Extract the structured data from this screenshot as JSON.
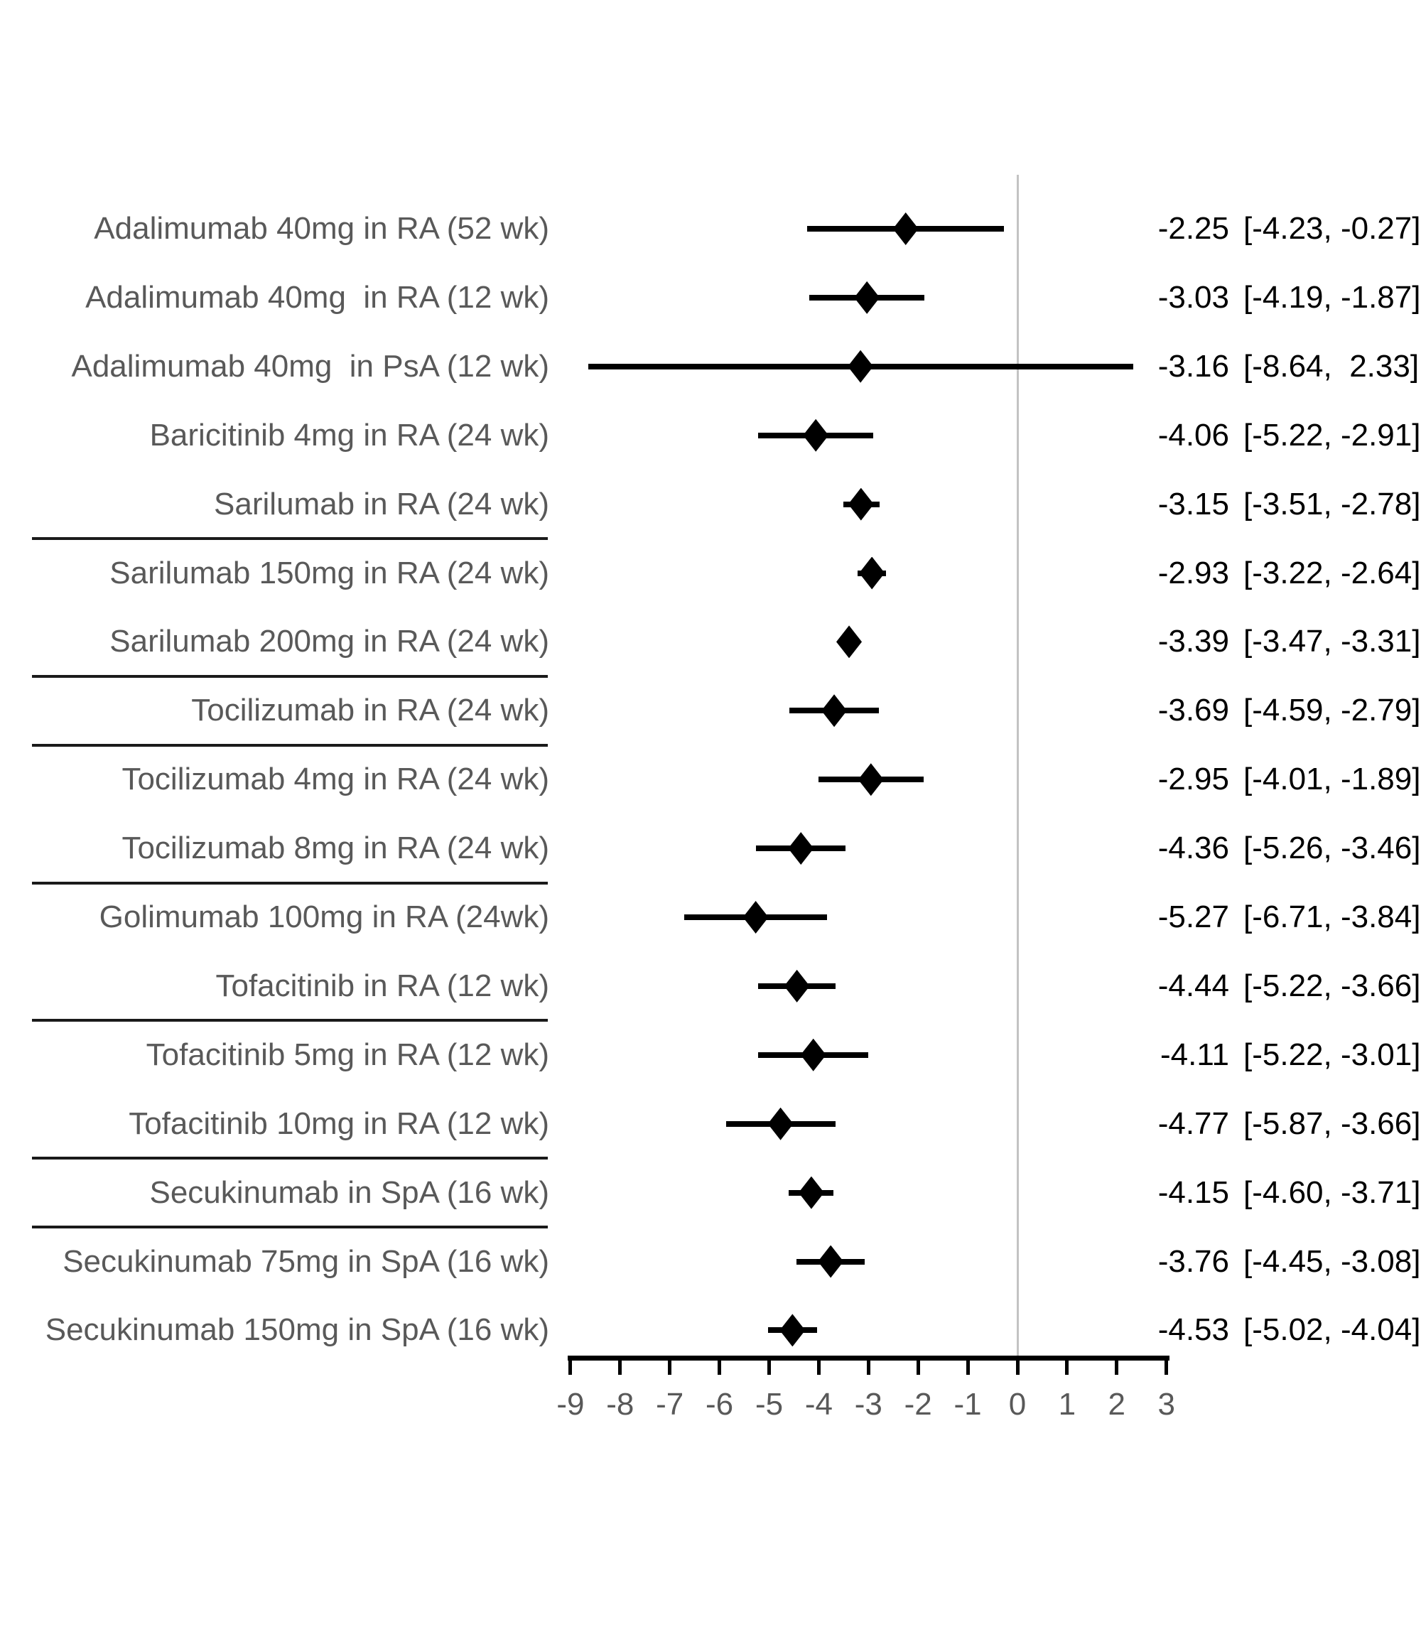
{
  "chart_data": {
    "type": "forest",
    "title": "",
    "xlabel": "",
    "ylabel": "",
    "xlim": [
      -9,
      3
    ],
    "grid": false,
    "zero_reference_line": 0,
    "x_axis": {
      "tick_values": [
        -9,
        -8,
        -7,
        -6,
        -5,
        -4,
        -3,
        -2,
        -1,
        0,
        1,
        2,
        3
      ],
      "tick_labels": [
        "-9",
        "-8",
        "-7",
        "-6",
        "-5",
        "-4",
        "-3",
        "-2",
        "-1",
        "0",
        "1",
        "2",
        "3"
      ]
    },
    "rows": [
      {
        "label": "Adalimumab 40mg in RA (52 wk)",
        "mean": -2.25,
        "lo": -4.23,
        "hi": -0.27,
        "value_text": "-2.25",
        "ci_text": "[-4.23, -0.27]"
      },
      {
        "label": "Adalimumab 40mg  in RA (12 wk)",
        "mean": -3.03,
        "lo": -4.19,
        "hi": -1.87,
        "value_text": "-3.03",
        "ci_text": "[-4.19, -1.87]"
      },
      {
        "label": "Adalimumab 40mg  in PsA (12 wk)",
        "mean": -3.16,
        "lo": -8.64,
        "hi": 2.33,
        "value_text": "-3.16",
        "ci_text": "[-8.64,  2.33]"
      },
      {
        "label": "Baricitinib 4mg in RA (24 wk)",
        "mean": -4.06,
        "lo": -5.22,
        "hi": -2.91,
        "value_text": "-4.06",
        "ci_text": "[-5.22, -2.91]"
      },
      {
        "label": "Sarilumab in RA (24 wk)",
        "mean": -3.15,
        "lo": -3.51,
        "hi": -2.78,
        "value_text": "-3.15",
        "ci_text": "[-3.51, -2.78]"
      },
      {
        "label": "Sarilumab 150mg in RA (24 wk)",
        "mean": -2.93,
        "lo": -3.22,
        "hi": -2.64,
        "value_text": "-2.93",
        "ci_text": "[-3.22, -2.64]"
      },
      {
        "label": "Sarilumab 200mg in RA (24 wk)",
        "mean": -3.39,
        "lo": -3.47,
        "hi": -3.31,
        "value_text": "-3.39",
        "ci_text": "[-3.47, -3.31]"
      },
      {
        "label": "Tocilizumab in RA (24 wk)",
        "mean": -3.69,
        "lo": -4.59,
        "hi": -2.79,
        "value_text": "-3.69",
        "ci_text": "[-4.59, -2.79]"
      },
      {
        "label": "Tocilizumab 4mg in RA (24 wk)",
        "mean": -2.95,
        "lo": -4.01,
        "hi": -1.89,
        "value_text": "-2.95",
        "ci_text": "[-4.01, -1.89]"
      },
      {
        "label": "Tocilizumab 8mg in RA (24 wk)",
        "mean": -4.36,
        "lo": -5.26,
        "hi": -3.46,
        "value_text": "-4.36",
        "ci_text": "[-5.26, -3.46]"
      },
      {
        "label": "Golimumab 100mg in RA (24wk)",
        "mean": -5.27,
        "lo": -6.71,
        "hi": -3.84,
        "value_text": "-5.27",
        "ci_text": "[-6.71, -3.84]"
      },
      {
        "label": "Tofacitinib in RA (12 wk)",
        "mean": -4.44,
        "lo": -5.22,
        "hi": -3.66,
        "value_text": "-4.44",
        "ci_text": "[-5.22, -3.66]"
      },
      {
        "label": "Tofacitinib 5mg in RA (12 wk)",
        "mean": -4.11,
        "lo": -5.22,
        "hi": -3.01,
        "value_text": "-4.11",
        "ci_text": "[-5.22, -3.01]"
      },
      {
        "label": "Tofacitinib 10mg in RA (12 wk)",
        "mean": -4.77,
        "lo": -5.87,
        "hi": -3.66,
        "value_text": "-4.77",
        "ci_text": "[-5.87, -3.66]"
      },
      {
        "label": "Secukinumab in SpA (16 wk)",
        "mean": -4.15,
        "lo": -4.6,
        "hi": -3.71,
        "value_text": "-4.15",
        "ci_text": "[-4.60, -3.71]"
      },
      {
        "label": "Secukinumab 75mg in SpA (16 wk)",
        "mean": -3.76,
        "lo": -4.45,
        "hi": -3.08,
        "value_text": "-3.76",
        "ci_text": "[-4.45, -3.08]"
      },
      {
        "label": "Secukinumab 150mg in SpA (16 wk)",
        "mean": -4.53,
        "lo": -5.02,
        "hi": -4.04,
        "value_text": "-4.53",
        "ci_text": "[-5.02, -4.04]"
      }
    ],
    "separators_after_row_index": [
      4,
      6,
      7,
      9,
      11,
      13,
      14
    ],
    "legend": null,
    "colors": {
      "marker": "#000000",
      "ci_line": "#000000",
      "label_text": "#595959",
      "value_text": "#000000",
      "axis": "#000000",
      "tick_label_text": "#595959",
      "zero_line": "#c3c3c3",
      "separator": "#1a1a1a",
      "background": "#ffffff"
    }
  }
}
